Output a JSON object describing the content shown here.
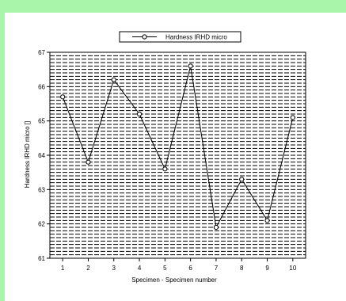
{
  "chart_data": {
    "type": "line",
    "xlabel": "Specimen - Specimen number",
    "ylabel": "Hardness IRHD micro []",
    "x": [
      1,
      2,
      3,
      4,
      5,
      6,
      7,
      8,
      9,
      10
    ],
    "xlim": [
      0.5,
      10.5
    ],
    "ylim": [
      61,
      67
    ],
    "yticks": [
      61,
      62,
      63,
      64,
      65,
      66,
      67
    ],
    "grid": true,
    "legend_position": "top-center",
    "series": [
      {
        "name": "Hardness IRHD micro",
        "values": [
          65.7,
          63.8,
          66.2,
          65.2,
          63.6,
          66.6,
          61.9,
          63.3,
          62.1,
          65.1
        ]
      }
    ],
    "colors": {
      "line": "#000000",
      "frame": "#a9f5a9",
      "grid": "#000000"
    }
  }
}
